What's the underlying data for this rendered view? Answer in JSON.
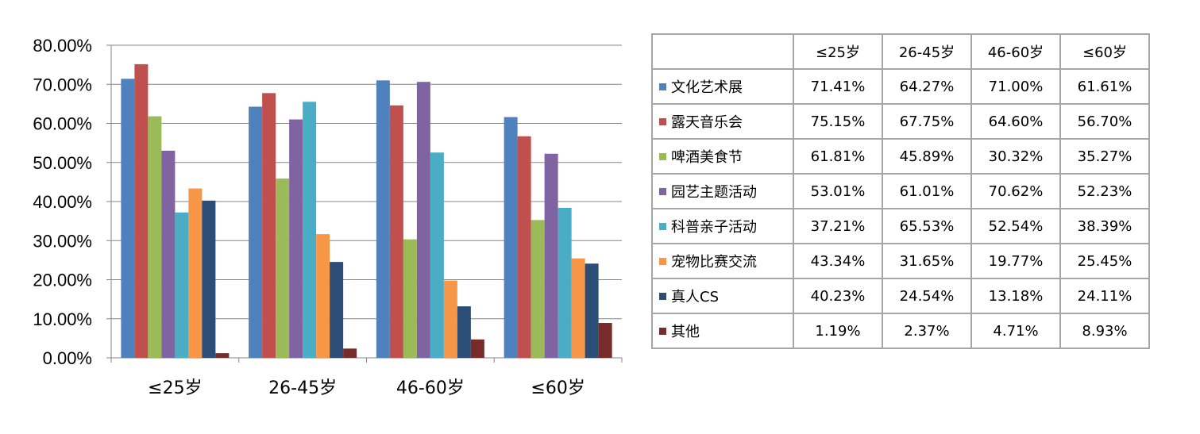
{
  "chart_data": {
    "type": "bar",
    "categories": [
      "≤25岁",
      "26-45岁",
      "46-60岁",
      "≤60岁"
    ],
    "series": [
      {
        "name": "文化艺术展",
        "color": "#4f81bd",
        "values": [
          71.41,
          64.27,
          71.0,
          61.61
        ],
        "labels": [
          "71.41%",
          "64.27%",
          "71.00%",
          "61.61%"
        ]
      },
      {
        "name": "露天音乐会",
        "color": "#c0504d",
        "values": [
          75.15,
          67.75,
          64.6,
          56.7
        ],
        "labels": [
          "75.15%",
          "67.75%",
          "64.60%",
          "56.70%"
        ]
      },
      {
        "name": "啤酒美食节",
        "color": "#9bbb59",
        "values": [
          61.81,
          45.89,
          30.32,
          35.27
        ],
        "labels": [
          "61.81%",
          "45.89%",
          "30.32%",
          "35.27%"
        ]
      },
      {
        "name": "园艺主题活动",
        "color": "#8064a2",
        "values": [
          53.01,
          61.01,
          70.62,
          52.23
        ],
        "labels": [
          "53.01%",
          "61.01%",
          "70.62%",
          "52.23%"
        ]
      },
      {
        "name": "科普亲子活动",
        "color": "#4bacc6",
        "values": [
          37.21,
          65.53,
          52.54,
          38.39
        ],
        "labels": [
          "37.21%",
          "65.53%",
          "52.54%",
          "38.39%"
        ]
      },
      {
        "name": "宠物比赛交流",
        "color": "#f79646",
        "values": [
          43.34,
          31.65,
          19.77,
          25.45
        ],
        "labels": [
          "43.34%",
          "31.65%",
          "19.77%",
          "25.45%"
        ]
      },
      {
        "name": "真人CS",
        "color": "#2c4d75",
        "values": [
          40.23,
          24.54,
          13.18,
          24.11
        ],
        "labels": [
          "40.23%",
          "24.54%",
          "13.18%",
          "24.11%"
        ]
      },
      {
        "name": "其他",
        "color": "#772c2a",
        "values": [
          1.19,
          2.37,
          4.71,
          8.93
        ],
        "labels": [
          "1.19%",
          "2.37%",
          "4.71%",
          "8.93%"
        ]
      }
    ],
    "y_ticks": [
      "0.00%",
      "10.00%",
      "20.00%",
      "30.00%",
      "40.00%",
      "50.00%",
      "60.00%",
      "70.00%",
      "80.00%"
    ],
    "ylim": [
      0,
      80
    ],
    "grid": "horizontal",
    "legend": "data-table-right"
  },
  "table": {
    "header": [
      "≤25岁",
      "26-45岁",
      "46-60岁",
      "≤60岁"
    ]
  }
}
